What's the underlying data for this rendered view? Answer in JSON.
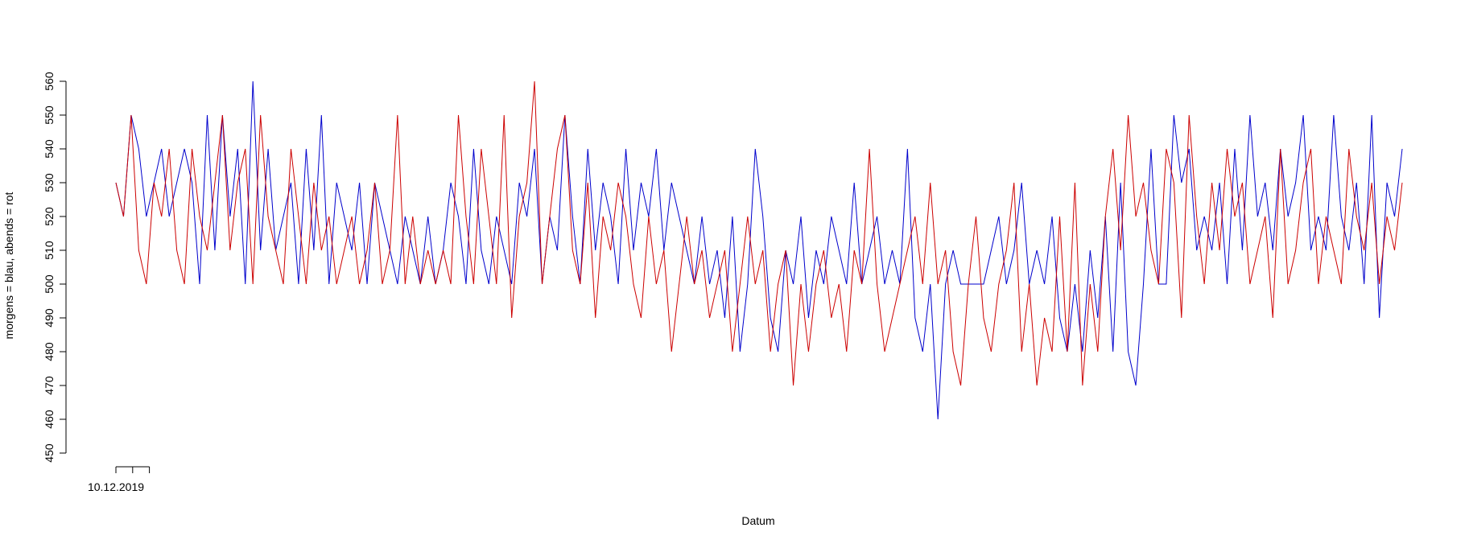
{
  "chart_data": {
    "type": "line",
    "xlabel": "Datum",
    "ylabel": "morgens = blau, abends = rot",
    "xlim": [
      0,
      169
    ],
    "xticks": [
      {
        "value": 0,
        "label": "10.12.2019"
      },
      {
        "value": 2.2,
        "label": null
      },
      {
        "value": 4.4,
        "label": null
      }
    ],
    "ylim": [
      450,
      560
    ],
    "yticks": [
      450,
      460,
      470,
      480,
      490,
      500,
      510,
      520,
      530,
      540,
      550,
      560
    ],
    "series": [
      {
        "color": "#0000cc",
        "values": [
          530,
          520,
          550,
          540,
          520,
          530,
          540,
          520,
          530,
          540,
          530,
          500,
          550,
          510,
          550,
          520,
          540,
          500,
          560,
          510,
          540,
          510,
          520,
          530,
          500,
          540,
          510,
          550,
          500,
          530,
          520,
          510,
          530,
          500,
          530,
          520,
          510,
          500,
          520,
          510,
          500,
          520,
          500,
          510,
          530,
          520,
          500,
          540,
          510,
          500,
          520,
          510,
          500,
          530,
          520,
          540,
          500,
          520,
          510,
          550,
          520,
          500,
          540,
          510,
          530,
          520,
          500,
          540,
          510,
          530,
          520,
          540,
          510,
          530,
          520,
          510,
          500,
          520,
          500,
          510,
          490,
          520,
          480,
          500,
          540,
          520,
          490,
          480,
          510,
          500,
          520,
          490,
          510,
          500,
          520,
          510,
          500,
          530,
          500,
          510,
          520,
          500,
          510,
          500,
          540,
          490,
          480,
          500,
          460,
          500,
          510,
          500,
          500,
          500,
          500,
          510,
          520,
          500,
          510,
          530,
          500,
          510,
          500,
          520,
          490,
          480,
          500,
          480,
          510,
          490,
          520,
          480,
          530,
          480,
          470,
          500,
          540,
          500,
          500,
          550,
          530,
          540,
          510,
          520,
          510,
          530,
          500,
          540,
          510,
          550,
          520,
          530,
          510,
          540,
          520,
          530,
          550,
          510,
          520,
          510,
          550,
          520,
          510,
          530,
          500,
          550,
          490,
          530,
          520,
          540
        ]
      },
      {
        "color": "#cc0000",
        "values": [
          530,
          520,
          550,
          510,
          500,
          530,
          520,
          540,
          510,
          500,
          540,
          520,
          510,
          530,
          550,
          510,
          530,
          540,
          500,
          550,
          520,
          510,
          500,
          540,
          520,
          500,
          530,
          510,
          520,
          500,
          510,
          520,
          500,
          510,
          530,
          500,
          510,
          550,
          500,
          520,
          500,
          510,
          500,
          510,
          500,
          550,
          520,
          500,
          540,
          520,
          500,
          550,
          490,
          520,
          530,
          560,
          500,
          520,
          540,
          550,
          510,
          500,
          530,
          490,
          520,
          510,
          530,
          520,
          500,
          490,
          520,
          500,
          510,
          480,
          500,
          520,
          500,
          510,
          490,
          500,
          510,
          480,
          500,
          520,
          500,
          510,
          480,
          500,
          510,
          470,
          500,
          480,
          500,
          510,
          490,
          500,
          480,
          510,
          500,
          540,
          500,
          480,
          490,
          500,
          510,
          520,
          500,
          530,
          500,
          510,
          480,
          470,
          500,
          520,
          490,
          480,
          500,
          510,
          530,
          480,
          500,
          470,
          490,
          480,
          520,
          480,
          530,
          470,
          500,
          480,
          520,
          540,
          510,
          550,
          520,
          530,
          510,
          500,
          540,
          530,
          490,
          550,
          520,
          500,
          530,
          510,
          540,
          520,
          530,
          500,
          510,
          520,
          490,
          540,
          500,
          510,
          530,
          540,
          500,
          520,
          510,
          500,
          540,
          520,
          510,
          530,
          500,
          520,
          510,
          530
        ]
      }
    ]
  }
}
